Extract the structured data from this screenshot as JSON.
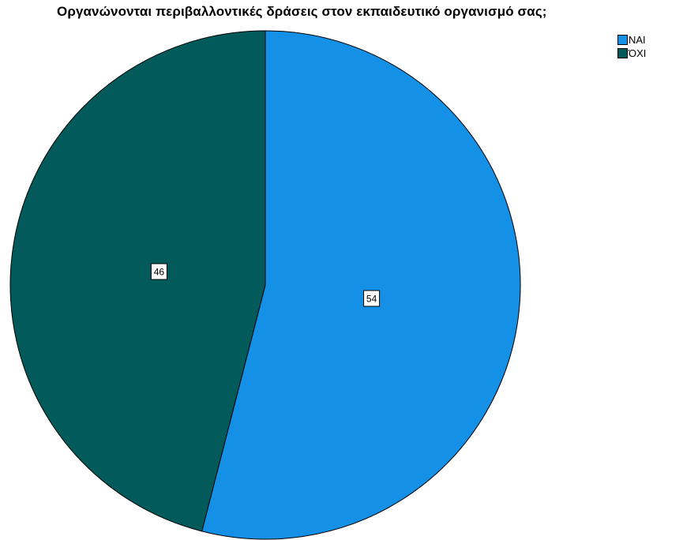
{
  "chart_data": {
    "type": "pie",
    "title": "Οργανώνονται περιβαλλοντικές δράσεις στον εκπαιδευτικό οργανισμό σας;",
    "categories": [
      "ΝΑΙ",
      "ΌΧΙ"
    ],
    "values": [
      54,
      46
    ],
    "colors": [
      "#1490e6",
      "#025a5a"
    ],
    "data_labels": [
      "54",
      "46"
    ],
    "legend_position": "top-right"
  }
}
